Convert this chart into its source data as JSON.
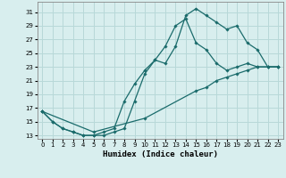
{
  "xlabel": "Humidex (Indice chaleur)",
  "bg_color": "#d8eeee",
  "grid_color": "#b8d8d8",
  "line_color": "#1a6b6b",
  "ylim": [
    12.5,
    32.5
  ],
  "xlim": [
    -0.5,
    23.5
  ],
  "yticks": [
    13,
    15,
    17,
    19,
    21,
    23,
    25,
    27,
    29,
    31
  ],
  "xticks": [
    0,
    1,
    2,
    3,
    4,
    5,
    6,
    7,
    8,
    9,
    10,
    11,
    12,
    13,
    14,
    15,
    16,
    17,
    18,
    19,
    20,
    21,
    22,
    23
  ],
  "curve1_x": [
    0,
    1,
    2,
    3,
    4,
    5,
    6,
    7,
    8,
    9,
    10,
    11,
    12,
    13,
    14,
    15,
    16,
    17,
    18,
    19,
    20,
    21,
    22,
    23
  ],
  "curve1_y": [
    16.5,
    15.0,
    14.0,
    13.5,
    13.0,
    13.0,
    13.0,
    13.5,
    14.0,
    18.0,
    22.0,
    24.0,
    23.5,
    26.0,
    30.5,
    31.5,
    30.5,
    29.5,
    28.5,
    29.0,
    26.5,
    25.5,
    23.0,
    23.0
  ],
  "curve2_x": [
    0,
    1,
    2,
    3,
    4,
    5,
    6,
    7,
    8,
    9,
    10,
    11,
    12,
    13,
    14,
    15,
    16,
    17,
    18,
    19,
    20,
    21,
    22,
    23
  ],
  "curve2_y": [
    16.5,
    15.0,
    14.0,
    13.5,
    13.0,
    13.0,
    13.5,
    14.0,
    18.0,
    20.5,
    22.5,
    24.0,
    26.0,
    29.0,
    30.0,
    26.5,
    25.5,
    23.5,
    22.5,
    23.0,
    23.5,
    23.0,
    23.0,
    23.0
  ],
  "curve3_x": [
    0,
    5,
    10,
    15,
    16,
    17,
    18,
    19,
    20,
    21,
    22,
    23
  ],
  "curve3_y": [
    16.5,
    13.5,
    15.5,
    19.5,
    20.0,
    21.0,
    21.5,
    22.0,
    22.5,
    23.0,
    23.0,
    23.0
  ]
}
